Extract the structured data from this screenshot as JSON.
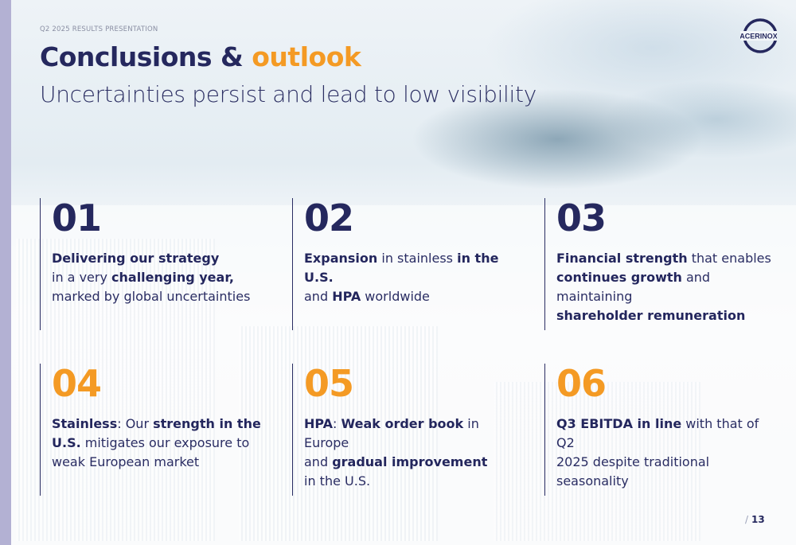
{
  "header": {
    "kicker": "Q2 2025 RESULTS PRESENTATION",
    "title_main": "Conclusions & ",
    "title_accent": "outlook",
    "subtitle": "Uncertainties persist and lead to low visibility",
    "logo_text": "ACERINOX"
  },
  "colors": {
    "navy": "#25285e",
    "orange": "#f49a24",
    "left_bar": "#b3b1d3"
  },
  "cards": [
    {
      "number": "01",
      "number_color": "navy",
      "lines": [
        [
          {
            "t": "Delivering our strategy",
            "b": true
          }
        ],
        [
          {
            "t": "in a very ",
            "b": false
          },
          {
            "t": "challenging year,",
            "b": true
          }
        ],
        [
          {
            "t": "marked by global uncertainties",
            "b": false
          }
        ]
      ]
    },
    {
      "number": "02",
      "number_color": "navy",
      "lines": [
        [
          {
            "t": "Expansion",
            "b": true
          },
          {
            "t": " in stainless ",
            "b": false
          },
          {
            "t": "in the U.S.",
            "b": true
          }
        ],
        [
          {
            "t": "and ",
            "b": false
          },
          {
            "t": "HPA",
            "b": true
          },
          {
            "t": " worldwide",
            "b": false
          }
        ]
      ]
    },
    {
      "number": "03",
      "number_color": "navy",
      "lines": [
        [
          {
            "t": "Financial strength",
            "b": true
          },
          {
            "t": " that enables",
            "b": false
          }
        ],
        [
          {
            "t": "continues growth",
            "b": true
          },
          {
            "t": " and maintaining",
            "b": false
          }
        ],
        [
          {
            "t": "shareholder remuneration",
            "b": true
          }
        ]
      ]
    },
    {
      "number": "04",
      "number_color": "orange",
      "lines": [
        [
          {
            "t": "Stainless",
            "b": true
          },
          {
            "t": ": Our ",
            "b": false
          },
          {
            "t": "strength in the",
            "b": true
          }
        ],
        [
          {
            "t": "U.S.",
            "b": true
          },
          {
            "t": " mitigates our exposure to",
            "b": false
          }
        ],
        [
          {
            "t": "weak European market",
            "b": false
          }
        ]
      ]
    },
    {
      "number": "05",
      "number_color": "orange",
      "lines": [
        [
          {
            "t": "HPA",
            "b": true
          },
          {
            "t": ": ",
            "b": false
          },
          {
            "t": "Weak order book",
            "b": true
          },
          {
            "t": " in Europe",
            "b": false
          }
        ],
        [
          {
            "t": "and ",
            "b": false
          },
          {
            "t": "gradual improvement",
            "b": true
          }
        ],
        [
          {
            "t": "in the U.S.",
            "b": false
          }
        ]
      ]
    },
    {
      "number": "06",
      "number_color": "orange",
      "lines": [
        [
          {
            "t": "Q3 EBITDA in line",
            "b": true
          },
          {
            "t": " with that of Q2",
            "b": false
          }
        ],
        [
          {
            "t": "2025 despite traditional seasonality",
            "b": false
          }
        ]
      ]
    }
  ],
  "footer": {
    "slash": "/",
    "page_number": "13"
  }
}
